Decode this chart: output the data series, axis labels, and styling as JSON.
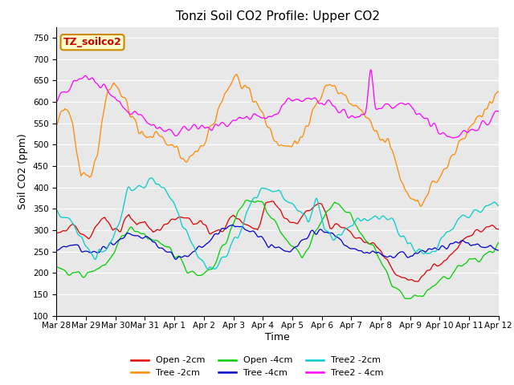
{
  "title": "Tonzi Soil CO2 Profile: Upper CO2",
  "xlabel": "Time",
  "ylabel": "Soil CO2 (ppm)",
  "ylim": [
    100,
    775
  ],
  "yticks": [
    100,
    150,
    200,
    250,
    300,
    350,
    400,
    450,
    500,
    550,
    600,
    650,
    700,
    750
  ],
  "label_box_text": "TZ_soilco2",
  "label_box_facecolor": "#ffffcc",
  "label_box_edgecolor": "#cc8800",
  "label_box_textcolor": "#cc0000",
  "plot_bg_color": "#e8e8e8",
  "series": [
    {
      "label": "Open -2cm",
      "color": "#dd0000"
    },
    {
      "label": "Tree -2cm",
      "color": "#ff8800"
    },
    {
      "label": "Open -4cm",
      "color": "#00cc00"
    },
    {
      "label": "Tree -4cm",
      "color": "#0000cc"
    },
    {
      "label": "Tree2 -2cm",
      "color": "#00cccc"
    },
    {
      "label": "Tree2 - 4cm",
      "color": "#ff00ff"
    }
  ],
  "x_tick_labels": [
    "Mar 28",
    "Mar 29",
    "Mar 30",
    "Mar 31",
    "Apr 1",
    "Apr 2",
    "Apr 3",
    "Apr 4",
    "Apr 5",
    "Apr 6",
    "Apr 7",
    "Apr 8",
    "Apr 9",
    "Apr 10",
    "Apr 11",
    "Apr 12"
  ],
  "title_fontsize": 11,
  "axis_label_fontsize": 9,
  "tick_fontsize": 7.5,
  "legend_fontsize": 8
}
